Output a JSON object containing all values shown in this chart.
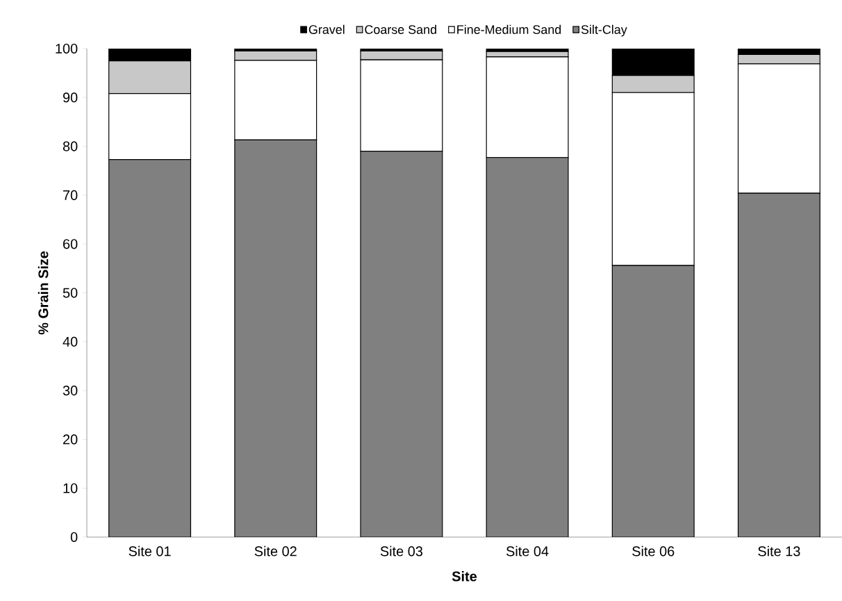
{
  "chart_data": {
    "type": "bar",
    "stacked": true,
    "xlabel": "Site",
    "ylabel": "% Grain Size",
    "categories": [
      "Site 01",
      "Site 02",
      "Site 03",
      "Site 04",
      "Site 06",
      "Site 13"
    ],
    "series": [
      {
        "name": "Silt-Clay",
        "color": "#808080",
        "values": [
          77.3,
          81.3,
          79.0,
          77.7,
          55.6,
          70.4
        ]
      },
      {
        "name": "Fine-Medium Sand",
        "color": "#ffffff",
        "values": [
          13.5,
          16.3,
          18.7,
          20.6,
          35.4,
          26.5
        ]
      },
      {
        "name": "Coarse Sand",
        "color": "#c8c8c8",
        "values": [
          6.7,
          1.9,
          1.8,
          1.1,
          3.5,
          1.9
        ]
      },
      {
        "name": "Gravel",
        "color": "#000000",
        "values": [
          2.5,
          0.5,
          0.5,
          0.6,
          5.5,
          1.2
        ]
      }
    ],
    "ylim": [
      0,
      100
    ],
    "yticks": [
      0,
      10,
      20,
      30,
      40,
      50,
      60,
      70,
      80,
      90,
      100
    ],
    "legend": "top",
    "grid": false
  }
}
